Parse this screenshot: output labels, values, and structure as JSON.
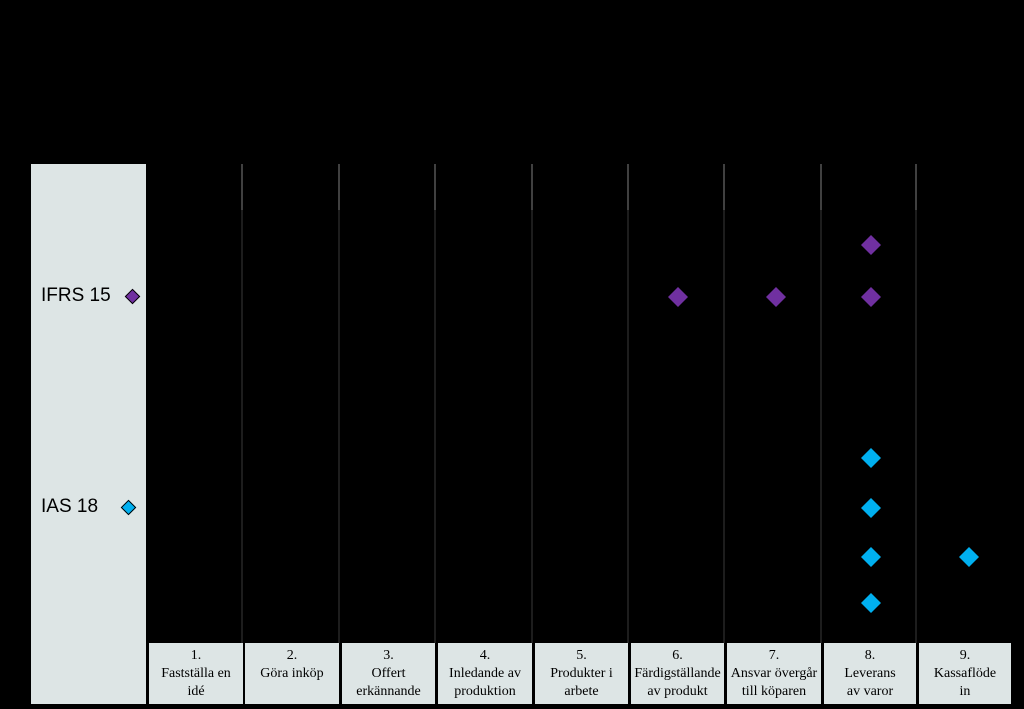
{
  "colors": {
    "background": "#000000",
    "panel": "#dde5e5",
    "gridline": "#7f7f7f",
    "ifrs15": "#7030a0",
    "ias18": "#00b0f0"
  },
  "chart_data": {
    "type": "scatter",
    "categories": [
      "1. Fastställa en idé",
      "2. Göra inköp",
      "3. Offert erkännande",
      "4. Inledande av produktion",
      "5. Produkter i arbete",
      "6. Färdigställande av produkt",
      "7. Ansvar övergår till köparen",
      "8. Leverans av varor",
      "9. Kassaflöde in"
    ],
    "stage_labels": [
      {
        "number": "1.",
        "lines": [
          "Fastställa en",
          "idé"
        ]
      },
      {
        "number": "2.",
        "lines": [
          "Göra inköp"
        ]
      },
      {
        "number": "3.",
        "lines": [
          "Offert",
          "erkännande"
        ]
      },
      {
        "number": "4.",
        "lines": [
          "Inledande  av",
          "produktion"
        ]
      },
      {
        "number": "5.",
        "lines": [
          "Produkter i",
          "arbete"
        ]
      },
      {
        "number": "6.",
        "lines": [
          "Färdigställande",
          "av produkt"
        ]
      },
      {
        "number": "7.",
        "lines": [
          "Ansvar övergår",
          "till köparen"
        ]
      },
      {
        "number": "8.",
        "lines": [
          "Leverans",
          "av varor"
        ]
      },
      {
        "number": "9.",
        "lines": [
          "Kassaflöde",
          "in"
        ]
      }
    ],
    "series": [
      {
        "name": "IFRS 15",
        "color": "#7030a0",
        "points": [
          {
            "stage": 6,
            "row": "mid"
          },
          {
            "stage": 7,
            "row": "mid"
          },
          {
            "stage": 8,
            "row": "mid"
          },
          {
            "stage": 8,
            "row": "upper"
          }
        ]
      },
      {
        "name": "IAS 18",
        "color": "#00b0f0",
        "points": [
          {
            "stage": 8,
            "row": "top"
          },
          {
            "stage": 8,
            "row": "mid"
          },
          {
            "stage": 8,
            "row": "low"
          },
          {
            "stage": 8,
            "row": "bottom"
          },
          {
            "stage": 9,
            "row": "low"
          }
        ]
      }
    ],
    "legend": "left"
  }
}
